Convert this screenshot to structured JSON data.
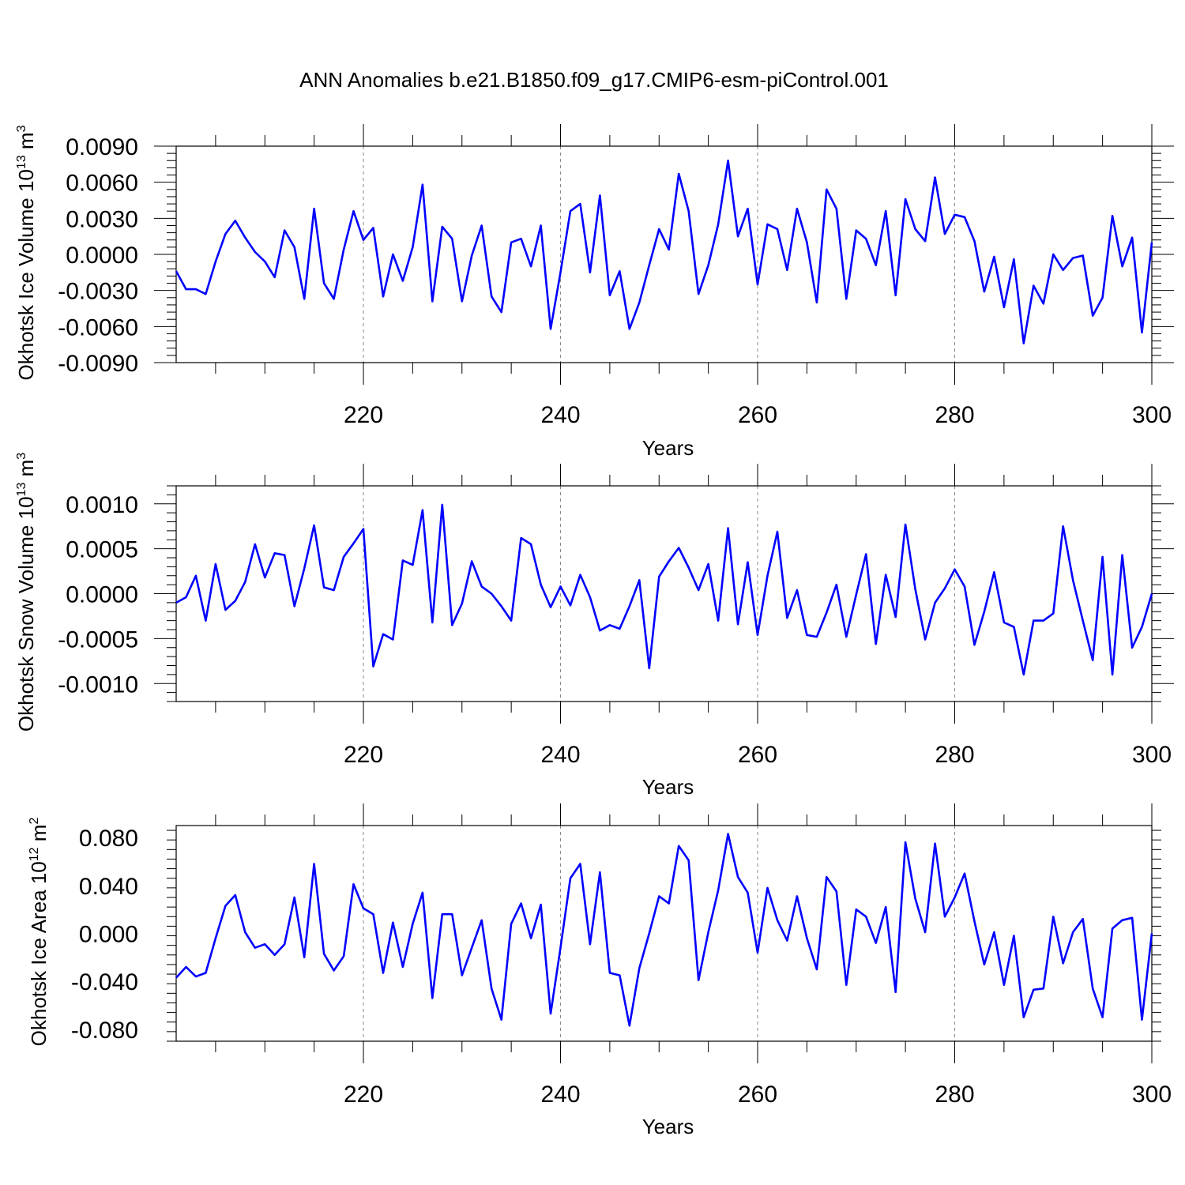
{
  "title": "ANN Anomalies b.e21.B1850.f09_g17.CMIP6-esm-piControl.001",
  "colors": {
    "line": "#0000ff",
    "frame": "#000000",
    "grid": "#888888"
  },
  "chart_data": [
    {
      "type": "line",
      "ylabel": "Okhotsk Ice Volume 10",
      "ylabel_exp": "13",
      "ylabel_unit": " m",
      "ylabel_unit_exp": "3",
      "xlabel": "Years",
      "xlim": [
        201,
        300
      ],
      "ylim": [
        -0.009,
        0.009
      ],
      "yticks": [
        -0.009,
        -0.006,
        -0.003,
        0.0,
        0.003,
        0.006,
        0.009
      ],
      "ytick_labels": [
        "-0.0090",
        "-0.0060",
        "-0.0030",
        "0.0000",
        "0.0030",
        "0.0060",
        "0.0090"
      ],
      "xticks": [
        220,
        240,
        260,
        280,
        300
      ],
      "xtick_labels": [
        "220",
        "240",
        "260",
        "280",
        "300"
      ],
      "grid_x": [
        220,
        240,
        260,
        280
      ],
      "x_start": 201,
      "values": [
        -0.0014,
        -0.0029,
        -0.0029,
        -0.0033,
        -0.0006,
        0.0017,
        0.0028,
        0.0014,
        0.0002,
        -0.0006,
        -0.0019,
        0.002,
        0.0006,
        -0.0037,
        0.0038,
        -0.0024,
        -0.0037,
        0.0004,
        0.0036,
        0.0012,
        0.0022,
        -0.0035,
        0.0,
        -0.0022,
        0.0006,
        0.0058,
        -0.0039,
        0.0023,
        0.0013,
        -0.0039,
        -0.0001,
        0.0024,
        -0.0035,
        -0.0048,
        0.001,
        0.0013,
        -0.001,
        0.0024,
        -0.0062,
        -0.0015,
        0.0036,
        0.0042,
        -0.0015,
        0.0049,
        -0.0034,
        -0.0014,
        -0.0062,
        -0.004,
        -0.0009,
        0.0021,
        0.0004,
        0.0067,
        0.0036,
        -0.0033,
        -0.0009,
        0.0025,
        0.0078,
        0.0015,
        0.0038,
        -0.0025,
        0.0025,
        0.0021,
        -0.0013,
        0.0038,
        0.001,
        -0.004,
        0.0054,
        0.0038,
        -0.0037,
        0.002,
        0.0013,
        -0.0009,
        0.0036,
        -0.0034,
        0.0046,
        0.0021,
        0.0011,
        0.0064,
        0.0017,
        0.0033,
        0.0031,
        0.0011,
        -0.0031,
        -0.0002,
        -0.0044,
        -0.0004,
        -0.0074,
        -0.0026,
        -0.0041,
        0.0,
        -0.0013,
        -0.0003,
        -0.0001,
        -0.0051,
        -0.0036,
        0.0032,
        -0.001,
        0.0014,
        -0.0065,
        0.001
      ]
    },
    {
      "type": "line",
      "ylabel": "Okhotsk Snow Volume 10",
      "ylabel_exp": "13",
      "ylabel_unit": " m",
      "ylabel_unit_exp": "3",
      "xlabel": "Years",
      "xlim": [
        201,
        300
      ],
      "ylim": [
        -0.0012,
        0.0012
      ],
      "yticks": [
        -0.001,
        -0.0005,
        0.0,
        0.0005,
        0.001
      ],
      "ytick_labels": [
        "-0.0010",
        "-0.0005",
        "0.0000",
        "0.0005",
        "0.0010"
      ],
      "xticks": [
        220,
        240,
        260,
        280,
        300
      ],
      "xtick_labels": [
        "220",
        "240",
        "260",
        "280",
        "300"
      ],
      "grid_x": [
        220,
        240,
        260,
        280
      ],
      "x_start": 201,
      "values": [
        -0.0001,
        -4e-05,
        0.0002,
        -0.0003,
        0.00033,
        -0.00018,
        -8e-05,
        0.00013,
        0.00055,
        0.00018,
        0.00045,
        0.00043,
        -0.00014,
        0.00028,
        0.00076,
        7e-05,
        4e-05,
        0.00041,
        0.00056,
        0.00072,
        -0.00081,
        -0.00045,
        -0.00051,
        0.00037,
        0.00032,
        0.00093,
        -0.00032,
        0.00099,
        -0.00035,
        -0.00011,
        0.00036,
        8e-05,
        0.0,
        -0.00014,
        -0.0003,
        0.00062,
        0.00055,
        0.0001,
        -0.00015,
        8e-05,
        -0.00013,
        0.00021,
        -4e-05,
        -0.00041,
        -0.00035,
        -0.00039,
        -0.00014,
        0.00015,
        -0.00083,
        0.00019,
        0.00036,
        0.00051,
        0.00029,
        4e-05,
        0.00033,
        -0.0003,
        0.00073,
        -0.00034,
        0.00035,
        -0.00046,
        0.0002,
        0.00069,
        -0.00027,
        4e-05,
        -0.00046,
        -0.00048,
        -0.00021,
        0.0001,
        -0.00048,
        -1e-05,
        0.00044,
        -0.00056,
        0.00021,
        -0.00026,
        0.00077,
        5e-05,
        -0.00051,
        -0.0001,
        6e-05,
        0.00027,
        8e-05,
        -0.00057,
        -0.0002,
        0.00024,
        -0.00032,
        -0.00037,
        -0.0009,
        -0.0003,
        -0.0003,
        -0.00022,
        0.00075,
        0.00015,
        -0.0003,
        -0.00074,
        0.00041,
        -0.0009,
        0.00043,
        -0.0006,
        -0.00037,
        0.0
      ]
    },
    {
      "type": "line",
      "ylabel": "Okhotsk Ice Area 10",
      "ylabel_exp": "12",
      "ylabel_unit": " m",
      "ylabel_unit_exp": "2",
      "xlabel": "Years",
      "xlim": [
        201,
        300
      ],
      "ylim": [
        -0.09,
        0.09
      ],
      "yticks": [
        -0.08,
        -0.04,
        0.0,
        0.04,
        0.08
      ],
      "ytick_labels": [
        "-0.080",
        "-0.040",
        "0.000",
        "0.040",
        "0.080"
      ],
      "xticks": [
        220,
        240,
        260,
        280,
        300
      ],
      "xtick_labels": [
        "220",
        "240",
        "260",
        "280",
        "300"
      ],
      "grid_x": [
        220,
        240,
        260,
        280
      ],
      "x_start": 201,
      "values": [
        -0.037,
        -0.028,
        -0.036,
        -0.033,
        -0.004,
        0.023,
        0.032,
        0.001,
        -0.012,
        -0.009,
        -0.018,
        -0.009,
        0.03,
        -0.02,
        0.058,
        -0.017,
        -0.031,
        -0.019,
        0.041,
        0.021,
        0.016,
        -0.033,
        0.009,
        -0.028,
        0.008,
        0.034,
        -0.054,
        0.016,
        0.016,
        -0.035,
        -0.012,
        0.011,
        -0.046,
        -0.072,
        0.008,
        0.025,
        -0.004,
        0.024,
        -0.067,
        -0.012,
        0.046,
        0.058,
        -0.009,
        0.051,
        -0.033,
        -0.035,
        -0.077,
        -0.029,
        0.0,
        0.031,
        0.025,
        0.073,
        0.061,
        -0.039,
        0.001,
        0.036,
        0.083,
        0.047,
        0.034,
        -0.016,
        0.038,
        0.011,
        -0.006,
        0.031,
        -0.004,
        -0.03,
        0.047,
        0.035,
        -0.043,
        0.02,
        0.014,
        -0.008,
        0.022,
        -0.049,
        0.076,
        0.029,
        0.001,
        0.075,
        0.014,
        0.03,
        0.05,
        0.01,
        -0.026,
        0.001,
        -0.043,
        -0.002,
        -0.07,
        -0.047,
        -0.046,
        0.014,
        -0.025,
        0.001,
        0.012,
        -0.046,
        -0.07,
        0.004,
        0.011,
        0.013,
        -0.072,
        0.0
      ]
    }
  ]
}
